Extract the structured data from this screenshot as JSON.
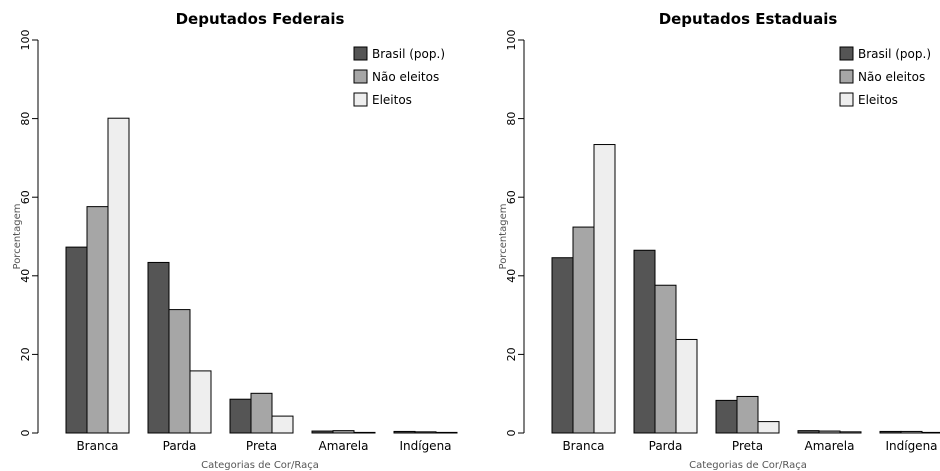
{
  "chart_data": [
    {
      "type": "bar",
      "title": "Deputados Federais",
      "xlabel": "Categorias de Cor/Raça",
      "ylabel": "Porcentagem",
      "ylim": [
        0,
        100
      ],
      "yticks": [
        0,
        20,
        40,
        60,
        80,
        100
      ],
      "categories": [
        "Branca",
        "Parda",
        "Preta",
        "Amarela",
        "Indígena"
      ],
      "series": [
        {
          "name": "Brasil (pop.)",
          "values": [
            47.3,
            43.4,
            8.6,
            0.5,
            0.4
          ]
        },
        {
          "name": "Não eleitos",
          "values": [
            57.6,
            31.4,
            10.1,
            0.6,
            0.3
          ]
        },
        {
          "name": "Eleitos",
          "values": [
            80.1,
            15.8,
            4.3,
            0.0,
            0.0
          ]
        }
      ],
      "legend_position": "top-right",
      "grid": false
    },
    {
      "type": "bar",
      "title": "Deputados Estaduais",
      "xlabel": "Categorias de Cor/Raça",
      "ylabel": "Porcentagem",
      "ylim": [
        0,
        100
      ],
      "yticks": [
        0,
        20,
        40,
        60,
        80,
        100
      ],
      "categories": [
        "Branca",
        "Parda",
        "Preta",
        "Amarela",
        "Indígena"
      ],
      "series": [
        {
          "name": "Brasil (pop.)",
          "values": [
            44.6,
            46.5,
            8.3,
            0.6,
            0.4
          ]
        },
        {
          "name": "Não eleitos",
          "values": [
            52.4,
            37.6,
            9.3,
            0.5,
            0.4
          ]
        },
        {
          "name": "Eleitos",
          "values": [
            73.4,
            23.8,
            2.9,
            0.3,
            0.1
          ]
        }
      ],
      "legend_position": "top-right",
      "grid": false
    }
  ],
  "colors": {
    "series": [
      "#555555",
      "#a6a6a6",
      "#eeeeee"
    ],
    "stroke": "#000000"
  }
}
